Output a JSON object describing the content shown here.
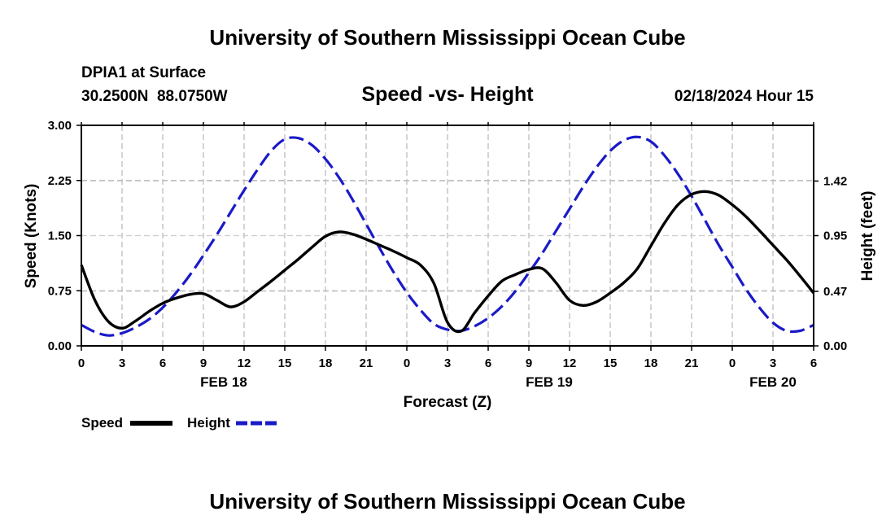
{
  "header": {
    "title": "University of Southern Mississippi Ocean Cube",
    "station": "DPIA1 at Surface",
    "coords": "30.2500N  88.0750W",
    "chart_title": "Speed -vs- Height",
    "datetime": "02/18/2024 Hour 15"
  },
  "footer": {
    "title": "University of Southern Mississippi Ocean Cube"
  },
  "legend": {
    "speed_label": "Speed",
    "height_label": "Height"
  },
  "chart_data": {
    "type": "line",
    "title": "Speed -vs- Height",
    "xlabel": "Forecast (Z)",
    "ylabel": "Speed (Knots)",
    "y2label": "Height (feet)",
    "x_range": [
      0,
      54
    ],
    "ylim": [
      0,
      3
    ],
    "y2lim": [
      0,
      1.9
    ],
    "x_ticks": [
      0,
      3,
      6,
      9,
      12,
      15,
      18,
      21,
      24,
      27,
      30,
      33,
      36,
      39,
      42,
      45,
      48,
      51,
      54
    ],
    "x_tick_labels": [
      "0",
      "3",
      "6",
      "9",
      "12",
      "15",
      "18",
      "21",
      "0",
      "3",
      "6",
      "9",
      "12",
      "15",
      "18",
      "21",
      "0",
      "3",
      "6"
    ],
    "y_ticks": [
      0,
      0.75,
      1.5,
      2.25,
      3
    ],
    "y_tick_labels": [
      "0.00",
      "0.75",
      "1.50",
      "2.25",
      "3.00"
    ],
    "y2_ticks": [
      0,
      0.47,
      0.95,
      1.42
    ],
    "y2_tick_labels": [
      "0.00",
      "0.47",
      "0.95",
      "1.42"
    ],
    "day_labels": [
      {
        "x": 10.5,
        "label": "FEB 18"
      },
      {
        "x": 34.5,
        "label": "FEB 19"
      },
      {
        "x": 51,
        "label": "FEB 20"
      }
    ],
    "grid": true,
    "legend_position": "bottom-left",
    "series": [
      {
        "name": "Speed",
        "axis": "left",
        "color": "#000000",
        "style": "solid",
        "x": [
          0,
          1,
          2,
          3,
          4,
          5,
          6,
          7,
          8,
          9,
          10,
          11,
          12,
          13,
          14,
          15,
          16,
          17,
          18,
          19,
          20,
          21,
          22,
          23,
          24,
          25,
          26,
          27,
          28,
          29,
          30,
          31,
          32,
          33,
          34,
          35,
          36,
          37,
          38,
          39,
          40,
          41,
          42,
          43,
          44,
          45,
          46,
          47,
          48,
          49,
          50,
          51,
          52,
          53,
          54
        ],
        "values": [
          1.1,
          0.62,
          0.33,
          0.24,
          0.34,
          0.47,
          0.58,
          0.65,
          0.7,
          0.71,
          0.62,
          0.53,
          0.6,
          0.74,
          0.88,
          1.03,
          1.18,
          1.34,
          1.49,
          1.55,
          1.52,
          1.45,
          1.37,
          1.29,
          1.2,
          1.1,
          0.85,
          0.32,
          0.2,
          0.45,
          0.68,
          0.88,
          0.97,
          1.04,
          1.05,
          0.86,
          0.62,
          0.55,
          0.6,
          0.72,
          0.86,
          1.05,
          1.36,
          1.67,
          1.92,
          2.06,
          2.1,
          2.05,
          1.92,
          1.76,
          1.57,
          1.37,
          1.17,
          0.95,
          0.72
        ]
      },
      {
        "name": "Height",
        "axis": "right",
        "color": "#1a1ac8",
        "style": "dashed",
        "x": [
          0,
          1,
          2,
          3,
          4,
          5,
          6,
          7,
          8,
          9,
          10,
          11,
          12,
          13,
          14,
          15,
          16,
          17,
          18,
          19,
          20,
          21,
          22,
          23,
          24,
          25,
          26,
          27,
          28,
          29,
          30,
          31,
          32,
          33,
          34,
          35,
          36,
          37,
          38,
          39,
          40,
          41,
          42,
          43,
          44,
          45,
          46,
          47,
          48,
          49,
          50,
          51,
          52,
          53,
          54
        ],
        "values": [
          0.18,
          0.12,
          0.09,
          0.11,
          0.16,
          0.23,
          0.33,
          0.46,
          0.61,
          0.78,
          0.96,
          1.15,
          1.34,
          1.52,
          1.68,
          1.78,
          1.79,
          1.73,
          1.61,
          1.45,
          1.26,
          1.05,
          0.84,
          0.64,
          0.46,
          0.31,
          0.19,
          0.14,
          0.13,
          0.17,
          0.24,
          0.34,
          0.47,
          0.63,
          0.8,
          0.99,
          1.18,
          1.37,
          1.54,
          1.68,
          1.77,
          1.8,
          1.76,
          1.64,
          1.48,
          1.29,
          1.08,
          0.87,
          0.68,
          0.49,
          0.33,
          0.2,
          0.13,
          0.13,
          0.18
        ]
      }
    ]
  }
}
